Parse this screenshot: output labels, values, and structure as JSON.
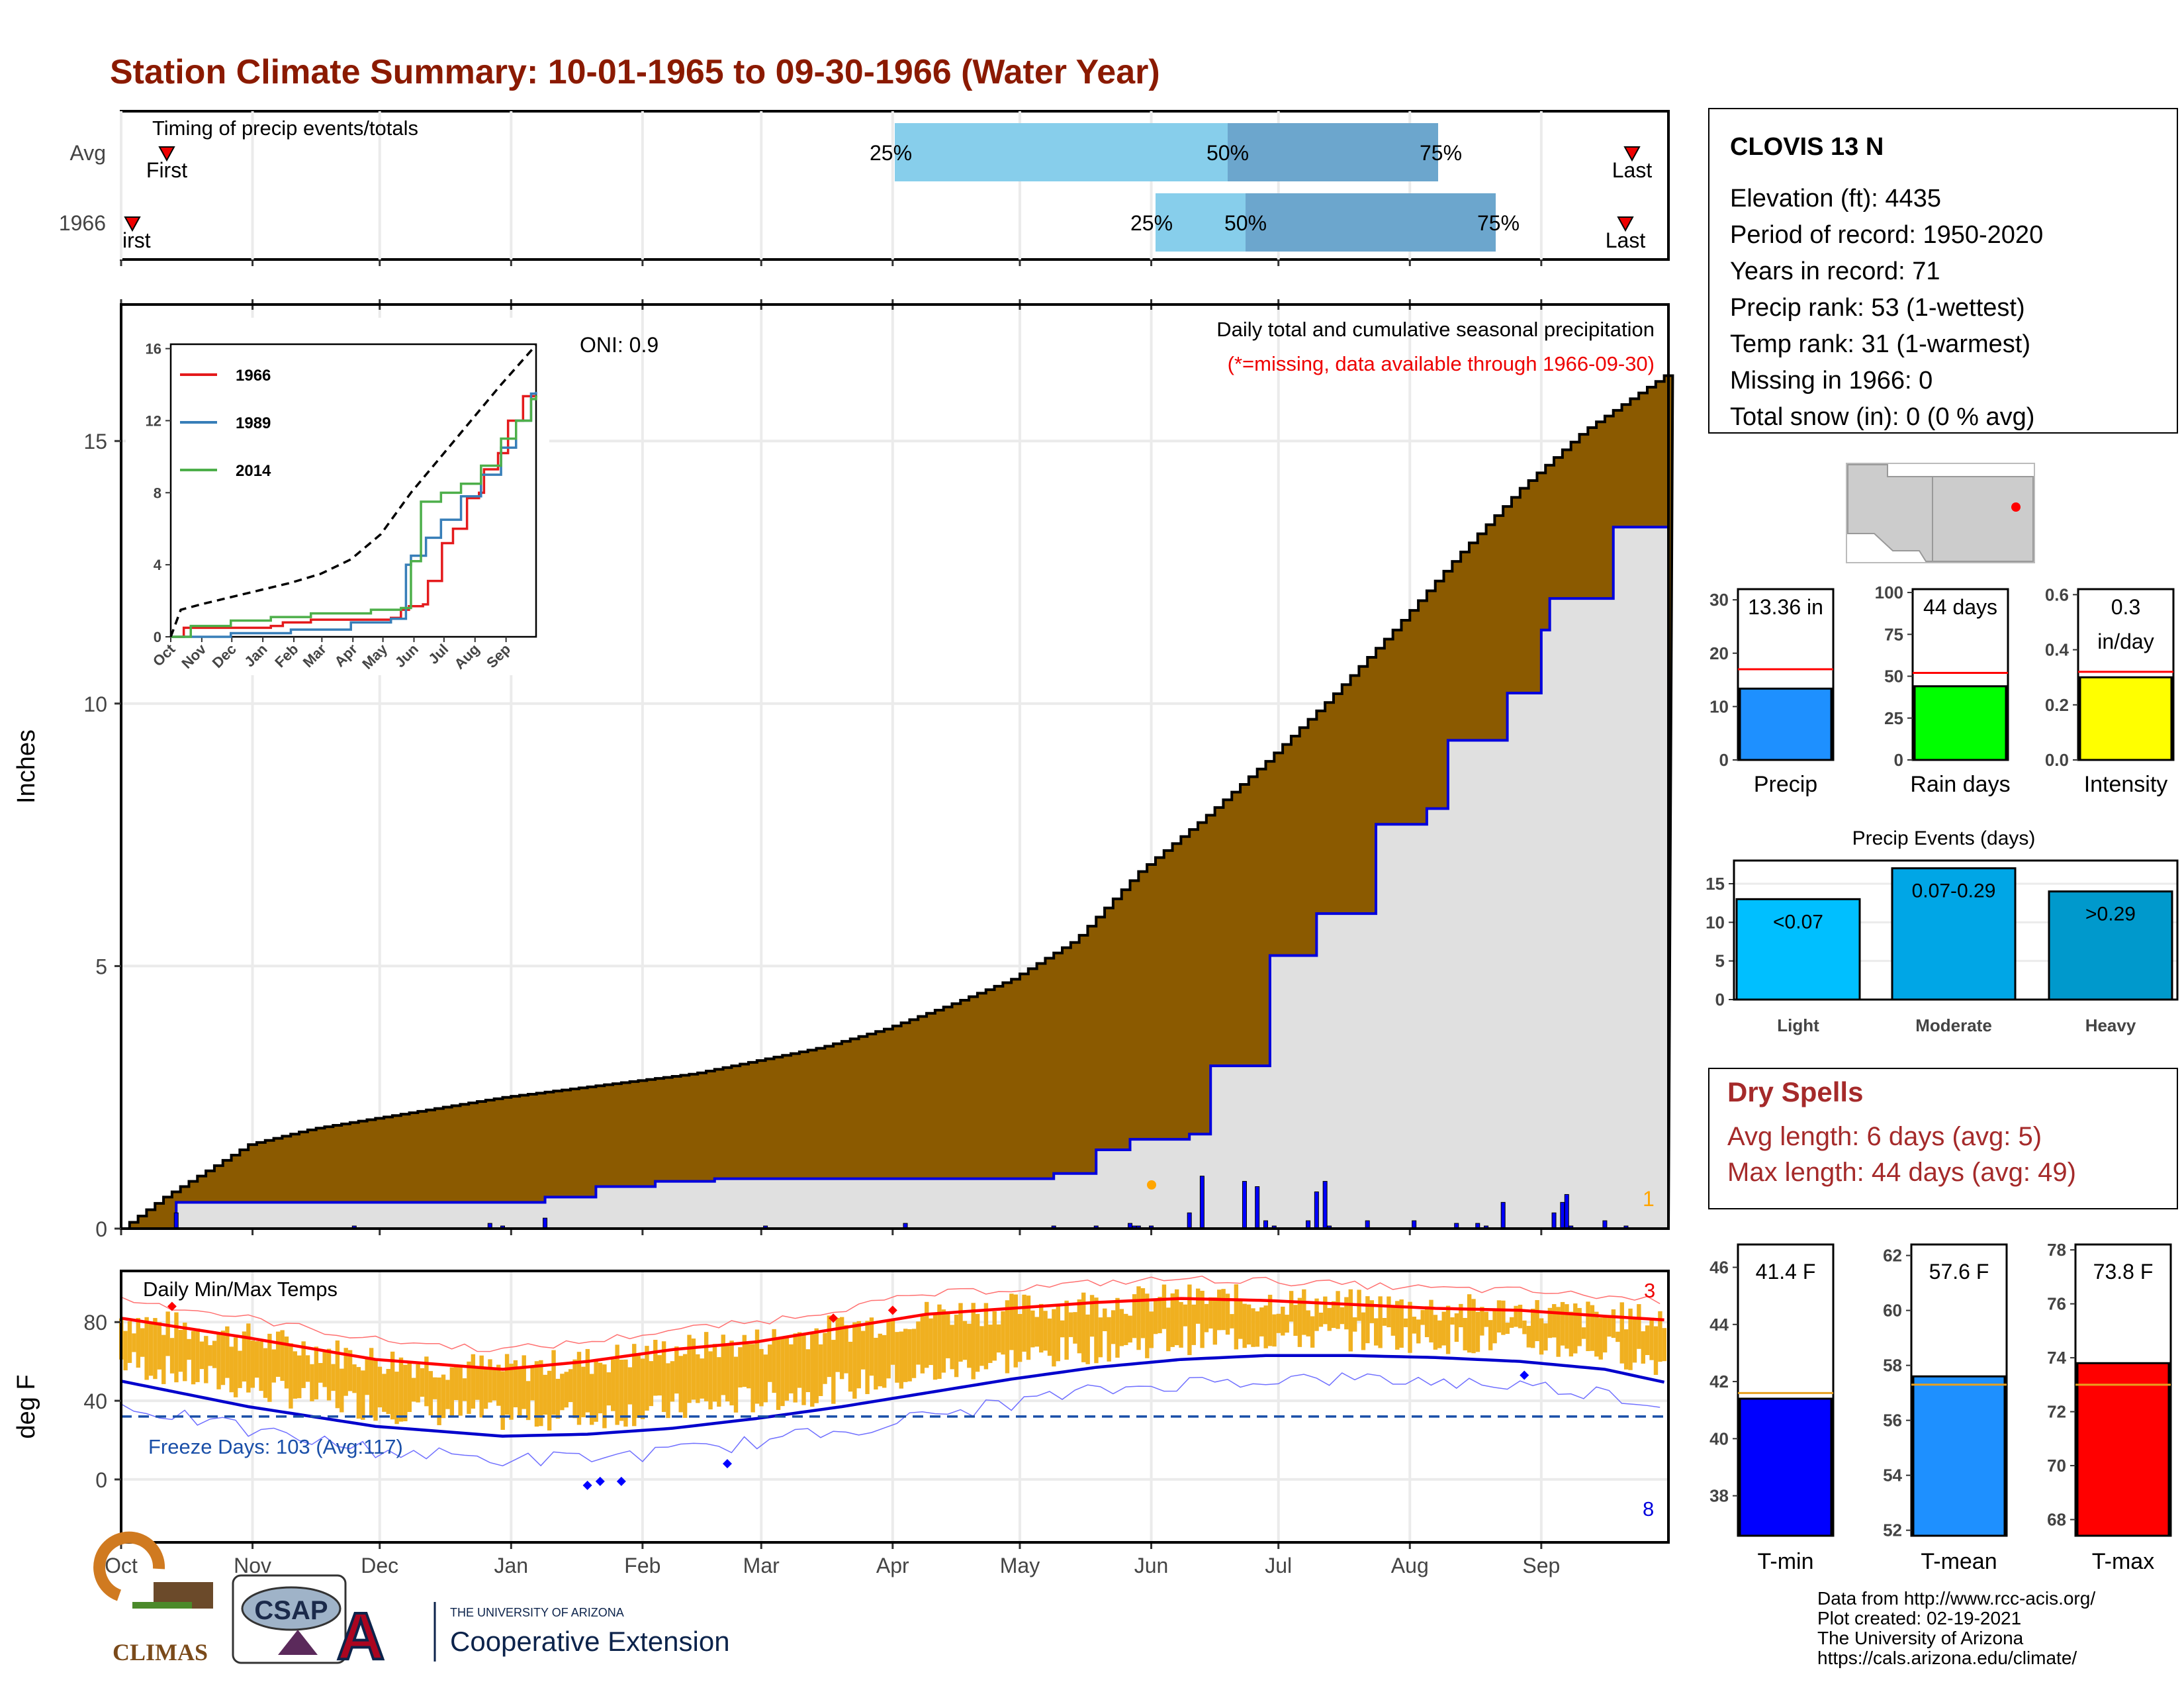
{
  "title": "Station Climate Summary: 10-01-1965 to 09-30-1966 (Water Year)",
  "months": [
    "Oct",
    "Nov",
    "Dec",
    "Jan",
    "Feb",
    "Mar",
    "Apr",
    "May",
    "Jun",
    "Jul",
    "Aug",
    "Sep"
  ],
  "timing": {
    "label": "Timing of precip events/totals",
    "rows": [
      "Avg",
      "1966"
    ],
    "first_label": "First",
    "first_label_1966": "irst",
    "last_label": "Last",
    "p25": "25%",
    "p50": "50%",
    "p75": "75%"
  },
  "precip_panel": {
    "ylabel": "Inches",
    "oni": "ONI: 0.9",
    "desc_line1": "Daily total and cumulative seasonal precipitation",
    "desc_line2": "(*=missing, data available through 1966-09-30)",
    "corner_count": "1",
    "yticks": [
      "0",
      "5",
      "10",
      "15"
    ]
  },
  "inset": {
    "legend": [
      "1966",
      "1989",
      "2014"
    ],
    "yticks": [
      "0",
      "4",
      "8",
      "12",
      "16"
    ],
    "xticks": [
      "Oct",
      "Nov",
      "Dec",
      "Jan",
      "Feb",
      "Mar",
      "Apr",
      "May",
      "Jun",
      "Jul",
      "Aug",
      "Sep"
    ]
  },
  "temp_panel": {
    "ylabel": "deg F",
    "label": "Daily Min/Max Temps",
    "freeze": "Freeze Days: 103 (Avg:117)",
    "count_high": "3",
    "count_low": "8",
    "yticks": [
      "0",
      "40",
      "80"
    ]
  },
  "station": {
    "name": "CLOVIS 13 N",
    "lines": [
      "Elevation (ft): 4435",
      "Period of record: 1950-2020",
      "Years in record: 71",
      "Precip rank: 53 (1-wettest)",
      "Temp rank: 31 (1-warmest)",
      "Missing in 1966: 0",
      "Total snow (in): 0 (0 % avg)"
    ]
  },
  "mini_bars": [
    {
      "label": "Precip",
      "value_label": "13.36 in",
      "value": 13.36,
      "avg": 17,
      "ymax": 32,
      "ticks": [
        "0",
        "10",
        "20",
        "30"
      ],
      "tickvals": [
        0,
        10,
        20,
        30
      ],
      "color": "#1E90FF"
    },
    {
      "label": "Rain days",
      "value_label": "44 days",
      "value": 44,
      "avg": 52,
      "ymax": 102,
      "ticks": [
        "0",
        "25",
        "50",
        "75",
        "100"
      ],
      "tickvals": [
        0,
        25,
        50,
        75,
        100
      ],
      "color": "#00FF00"
    },
    {
      "label": "Intensity",
      "value_label": "0.3",
      "value_label2": "in/day",
      "value": 0.3,
      "avg": 0.32,
      "ymax": 0.62,
      "ticks": [
        "0.0",
        "0.2",
        "0.4",
        "0.6"
      ],
      "tickvals": [
        0,
        0.2,
        0.4,
        0.6
      ],
      "color": "#FFFF00"
    }
  ],
  "events": {
    "title": "Precip Events (days)",
    "ticks": [
      "0",
      "5",
      "10",
      "15"
    ],
    "bars": [
      {
        "label": "Light",
        "value": 13,
        "text": "<0.07",
        "color": "#00BFFF"
      },
      {
        "label": "Moderate",
        "value": 17,
        "text": "0.07-0.29",
        "color": "#00A6E6"
      },
      {
        "label": "Heavy",
        "value": 14,
        "text": ">0.29",
        "color": "#0099CC"
      }
    ]
  },
  "dry_spells": {
    "title": "Dry Spells",
    "line1": "Avg length: 6 days (avg: 5)",
    "line2": "Max length: 44 days (avg: 49)"
  },
  "temp_bars": [
    {
      "label": "T-min",
      "value_label": "41.4 F",
      "value": 41.4,
      "avg": 41.6,
      "ymin": 36.6,
      "ymax": 46.8,
      "ticks": [
        "38",
        "40",
        "42",
        "44",
        "46"
      ],
      "tickvals": [
        38,
        40,
        42,
        44,
        46
      ],
      "color": "#0000FF"
    },
    {
      "label": "T-mean",
      "value_label": "57.6 F",
      "value": 57.6,
      "avg": 57.3,
      "ymin": 51.8,
      "ymax": 62.4,
      "ticks": [
        "52",
        "54",
        "56",
        "58",
        "60",
        "62"
      ],
      "tickvals": [
        52,
        54,
        56,
        58,
        60,
        62
      ],
      "color": "#1E90FF"
    },
    {
      "label": "T-max",
      "value_label": "73.8 F",
      "value": 73.8,
      "avg": 73.0,
      "ymin": 67.4,
      "ymax": 78.2,
      "ticks": [
        "68",
        "70",
        "72",
        "74",
        "76",
        "78"
      ],
      "tickvals": [
        68,
        70,
        72,
        74,
        76,
        78
      ],
      "color": "#FF0000"
    }
  ],
  "credits": [
    "Data from http://www.rcc-acis.org/",
    "Plot created: 02-19-2021",
    "The University of Arizona",
    "https://cals.arizona.edu/climate/"
  ],
  "logos": {
    "climas": "CLIMAS",
    "csap": "CSAP",
    "uofa": "A",
    "uofa_small": "THE UNIVERSITY OF ARIZONA",
    "uofa_big": "Cooperative Extension"
  },
  "chart_data": {
    "type": "area",
    "title": "Daily total and cumulative seasonal precipitation",
    "ylabel": "Inches",
    "ylim": [
      0,
      16.3
    ],
    "cumulative_avg": {
      "doy": [
        0,
        10,
        30,
        45,
        60,
        75,
        90,
        105,
        120,
        135,
        150,
        165,
        180,
        195,
        210,
        225,
        240,
        255,
        270,
        285,
        300,
        315,
        330,
        345,
        365
      ],
      "inches": [
        0,
        0.6,
        1.6,
        1.9,
        2.1,
        2.3,
        2.5,
        2.65,
        2.8,
        2.95,
        3.2,
        3.45,
        3.8,
        4.25,
        4.75,
        5.5,
        6.8,
        7.8,
        8.9,
        10.1,
        11.4,
        12.8,
        14.1,
        15.2,
        16.3
      ]
    },
    "cumulative_1966": {
      "doy": [
        0,
        12,
        13,
        40,
        60,
        100,
        112,
        126,
        140,
        220,
        230,
        231,
        238,
        252,
        257,
        271,
        282,
        296,
        308,
        313,
        327,
        335,
        337,
        352,
        365
      ],
      "inches": [
        0,
        0,
        0.5,
        0.5,
        0.5,
        0.6,
        0.8,
        0.9,
        0.95,
        1.05,
        1.5,
        1.5,
        1.7,
        1.8,
        3.1,
        5.2,
        6.0,
        7.7,
        8.0,
        9.3,
        10.2,
        11.4,
        12.0,
        13.36,
        13.36
      ]
    },
    "daily_1966": {
      "doy": [
        13,
        55,
        87,
        90,
        100,
        152,
        185,
        220,
        230,
        238,
        239,
        240,
        243,
        252,
        255,
        265,
        268,
        270,
        272,
        280,
        282,
        284,
        285,
        294,
        305,
        315,
        320,
        322,
        326,
        338,
        340,
        341,
        342,
        350,
        355
      ],
      "inches": [
        0.3,
        0.05,
        0.1,
        0.05,
        0.2,
        0.05,
        0.1,
        0.05,
        0.05,
        0.1,
        0.05,
        0.05,
        0.05,
        0.3,
        1.0,
        0.9,
        0.8,
        0.15,
        0.05,
        0.15,
        0.7,
        0.9,
        0.05,
        0.15,
        0.15,
        0.1,
        0.1,
        0.05,
        0.5,
        0.3,
        0.5,
        0.65,
        0.05,
        0.15,
        0.05
      ]
    },
    "temperature": {
      "ylim": [
        -20,
        100
      ],
      "freeze_line": 32,
      "avg_max": {
        "doy": [
          0,
          30,
          60,
          90,
          110,
          130,
          150,
          170,
          190,
          210,
          230,
          250,
          270,
          290,
          310,
          330,
          350,
          365
        ],
        "degF": [
          82,
          72,
          61,
          56,
          60,
          66,
          70,
          77,
          84,
          87,
          90,
          92,
          91,
          89,
          87,
          86,
          83,
          81
        ]
      },
      "avg_min": {
        "doy": [
          0,
          30,
          60,
          90,
          110,
          130,
          150,
          170,
          190,
          210,
          230,
          250,
          270,
          290,
          310,
          330,
          350,
          365
        ],
        "degF": [
          50,
          37,
          27,
          22,
          23,
          26,
          31,
          37,
          44,
          51,
          57,
          61,
          63,
          63,
          62,
          60,
          56,
          49
        ]
      }
    },
    "inset": {
      "xlim": [
        0,
        365
      ],
      "ylim": [
        0,
        16
      ],
      "series": [
        {
          "name": "1966",
          "doy": [
            0,
            12,
            13,
            100,
            112,
            140,
            220,
            230,
            238,
            252,
            257,
            271,
            282,
            296,
            308,
            313,
            327,
            337,
            352,
            365
          ],
          "inches": [
            0,
            0,
            0.5,
            0.6,
            0.8,
            0.95,
            1.05,
            1.5,
            1.7,
            1.8,
            3.1,
            5.2,
            6.0,
            7.7,
            8.0,
            9.3,
            10.2,
            12.0,
            13.36,
            13.4
          ]
        },
        {
          "name": "1989",
          "doy": [
            0,
            30,
            60,
            120,
            180,
            220,
            235,
            240,
            255,
            270,
            290,
            310,
            330,
            345,
            360,
            365
          ],
          "inches": [
            0,
            0,
            0.2,
            0.4,
            0.8,
            1.0,
            4.0,
            4.5,
            5.5,
            6.5,
            7.8,
            9.0,
            10.5,
            12.0,
            13.5,
            13.6
          ]
        },
        {
          "name": "2014",
          "doy": [
            0,
            20,
            60,
            100,
            140,
            200,
            230,
            240,
            250,
            270,
            290,
            310,
            330,
            345,
            360,
            365
          ],
          "inches": [
            0,
            0.6,
            0.9,
            1.1,
            1.3,
            1.5,
            1.6,
            4.2,
            7.5,
            8.0,
            8.5,
            9.5,
            11.0,
            12.0,
            13.2,
            13.4
          ]
        },
        {
          "name": "Avg",
          "doy": [
            0,
            10,
            30,
            60,
            90,
            120,
            150,
            180,
            210,
            240,
            270,
            300,
            330,
            365
          ],
          "inches": [
            0,
            1.5,
            1.8,
            2.2,
            2.6,
            3.0,
            3.5,
            4.3,
            5.7,
            8.0,
            10.0,
            12.0,
            14.0,
            16.2
          ]
        }
      ]
    }
  }
}
